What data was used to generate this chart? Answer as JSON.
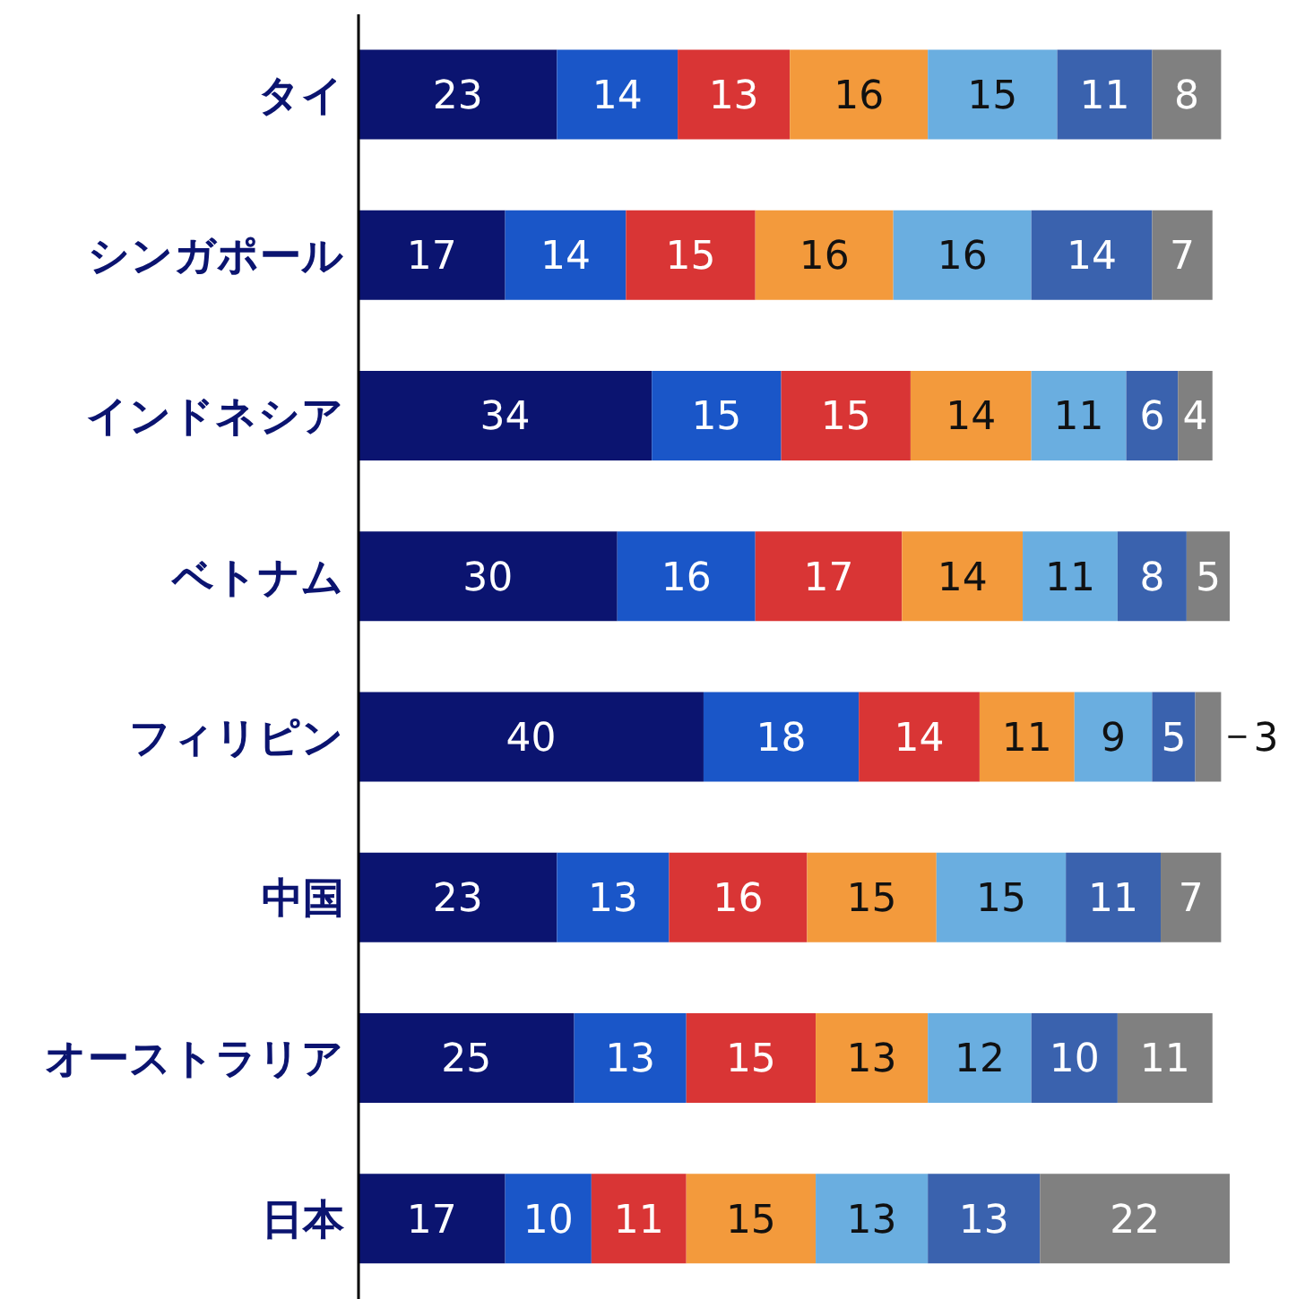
{
  "chart_data": {
    "type": "bar",
    "orientation": "horizontal",
    "stacked": true,
    "data_labels": true,
    "categories": [
      "タイ",
      "シンガポール",
      "インドネシア",
      "ベトナム",
      "フィリピン",
      "中国",
      "オーストラリア",
      "日本"
    ],
    "series": [
      {
        "color": "#0b1470",
        "values": [
          23,
          17,
          34,
          30,
          40,
          23,
          25,
          17
        ]
      },
      {
        "color": "#1a56c8",
        "values": [
          14,
          14,
          15,
          16,
          18,
          13,
          13,
          10
        ]
      },
      {
        "color": "#d93535",
        "values": [
          13,
          15,
          15,
          17,
          14,
          16,
          15,
          11
        ]
      },
      {
        "color": "#f39a3c",
        "values": [
          16,
          16,
          14,
          14,
          11,
          15,
          13,
          15
        ]
      },
      {
        "color": "#6aaee0",
        "values": [
          15,
          16,
          11,
          11,
          9,
          15,
          12,
          13
        ]
      },
      {
        "color": "#3a62ae",
        "values": [
          11,
          14,
          6,
          8,
          5,
          11,
          10,
          13
        ]
      },
      {
        "color": "#808080",
        "values": [
          8,
          7,
          4,
          5,
          3,
          7,
          11,
          22
        ]
      }
    ]
  }
}
